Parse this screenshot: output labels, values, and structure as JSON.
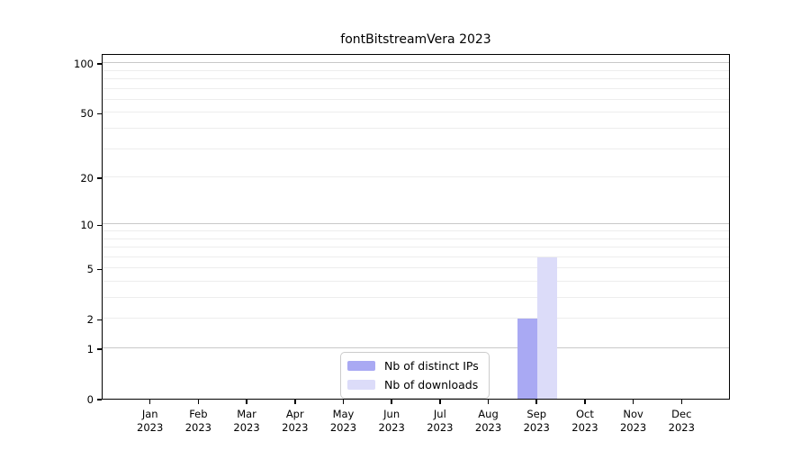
{
  "chart_data": {
    "type": "bar",
    "title": "fontBitstreamVera 2023",
    "categories": [
      "Jan",
      "Feb",
      "Mar",
      "Apr",
      "May",
      "Jun",
      "Jul",
      "Aug",
      "Sep",
      "Oct",
      "Nov",
      "Dec"
    ],
    "category_year": "2023",
    "series": [
      {
        "name": "Nb of distinct IPs",
        "color": "#a9a9f3",
        "values": [
          0,
          0,
          0,
          0,
          0,
          0,
          0,
          0,
          2,
          0,
          0,
          0
        ]
      },
      {
        "name": "Nb of downloads",
        "color": "#dcdcf9",
        "values": [
          0,
          0,
          0,
          0,
          0,
          0,
          0,
          0,
          6,
          0,
          0,
          0
        ]
      }
    ],
    "xlabel": "",
    "ylabel": "",
    "yscale": "symlog-log1p",
    "ylim": [
      0,
      115
    ],
    "y_ticks": [
      0,
      1,
      2,
      5,
      10,
      20,
      50,
      100
    ],
    "y_major_gridlines": [
      1,
      10,
      100
    ],
    "y_minor_gridlines": [
      2,
      3,
      4,
      5,
      6,
      7,
      8,
      9,
      20,
      30,
      40,
      50,
      60,
      70,
      80,
      90
    ],
    "grid": "on",
    "legend_position": "inside-bottom-center"
  },
  "colors": {
    "background": "#ffffff",
    "spine": "#000000",
    "text": "#000000",
    "major_grid": "#c9c9c9",
    "minor_grid": "#ededed",
    "legend_border": "#cccccc"
  }
}
